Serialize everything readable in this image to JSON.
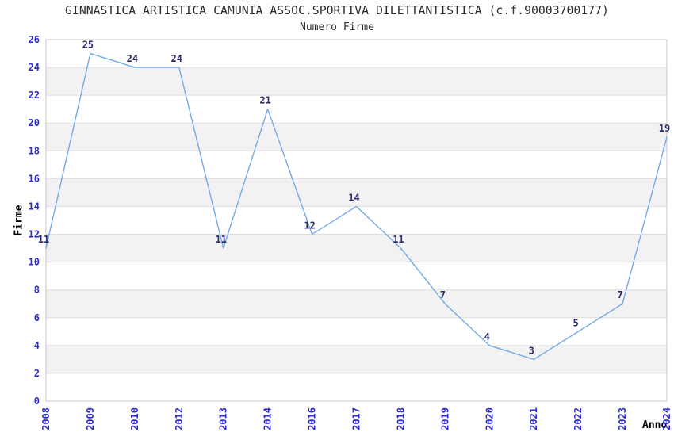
{
  "header": {
    "title": "GINNASTICA ARTISTICA CAMUNIA ASSOC.SPORTIVA DILETTANTISTICA (c.f.90003700177)",
    "subtitle": "Numero Firme"
  },
  "chart_data": {
    "type": "line",
    "title": "Numero Firme",
    "x": [
      "2008",
      "2009",
      "2010",
      "2012",
      "2013",
      "2014",
      "2016",
      "2017",
      "2018",
      "2019",
      "2020",
      "2021",
      "2022",
      "2023",
      "2024"
    ],
    "series": [
      {
        "name": "Firme",
        "values": [
          11,
          25,
          24,
          24,
          11,
          21,
          12,
          14,
          11,
          7,
          4,
          3,
          5,
          7,
          19
        ]
      }
    ],
    "xlabel": "Anno",
    "ylabel": "Firme",
    "ylim": [
      0,
      26
    ],
    "ytick_step": 2,
    "yticks": [
      0,
      2,
      4,
      6,
      8,
      10,
      12,
      14,
      16,
      18,
      20,
      22,
      24,
      26
    ],
    "grid": true,
    "legend": false,
    "band_pattern": "alternating 2-unit horizontal bands, gray on 2-4, 6-8, 10-12, 14-16, 18-20, 22-24",
    "data_labels_visible": true,
    "colors": {
      "line": "#74aae6",
      "tick_label": "#2a2ad0",
      "data_label": "#2a2a6e",
      "band": "#f2f2f2",
      "gridline": "#dedede",
      "plot_border": "#c8c8c8",
      "title_text": "#2b2b2b",
      "axis_title_text": "#000000",
      "background": "#ffffff"
    }
  }
}
